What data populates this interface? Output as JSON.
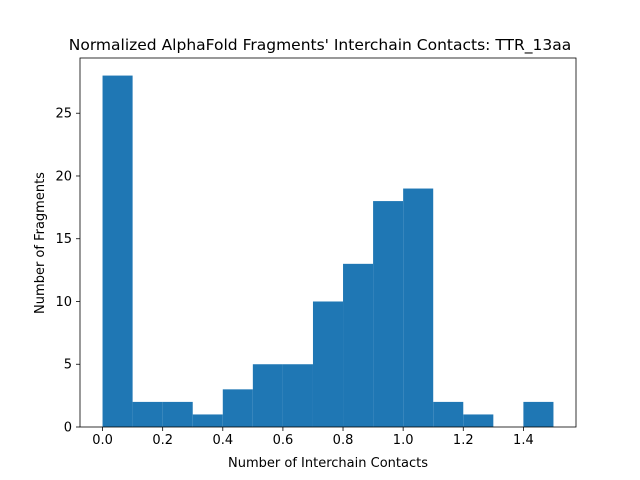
{
  "chart_data": {
    "type": "histogram",
    "title": "Normalized AlphaFold Fragments' Interchain Contacts: TTR_13aa",
    "xlabel": "Number of Interchain Contacts",
    "ylabel": "Number of Fragments",
    "bin_edges": [
      0.0,
      0.1,
      0.2,
      0.3,
      0.4,
      0.5,
      0.6,
      0.7,
      0.8,
      0.9,
      1.0,
      1.1,
      1.2,
      1.3,
      1.4,
      1.5
    ],
    "counts": [
      28,
      2,
      2,
      1,
      3,
      5,
      5,
      10,
      13,
      18,
      19,
      2,
      1,
      0,
      2
    ],
    "xlim": [
      -0.075,
      1.575
    ],
    "ylim": [
      0,
      29.4
    ],
    "xticks": [
      0.0,
      0.2,
      0.4,
      0.6,
      0.8,
      1.0,
      1.2,
      1.4
    ],
    "xtick_labels": [
      "0.0",
      "0.2",
      "0.4",
      "0.6",
      "0.8",
      "1.0",
      "1.2",
      "1.4"
    ],
    "yticks": [
      0,
      5,
      10,
      15,
      20,
      25
    ],
    "ytick_labels": [
      "0",
      "5",
      "10",
      "15",
      "20",
      "25"
    ],
    "bar_color": "#1f77b4",
    "grid": false,
    "legend": "none"
  }
}
